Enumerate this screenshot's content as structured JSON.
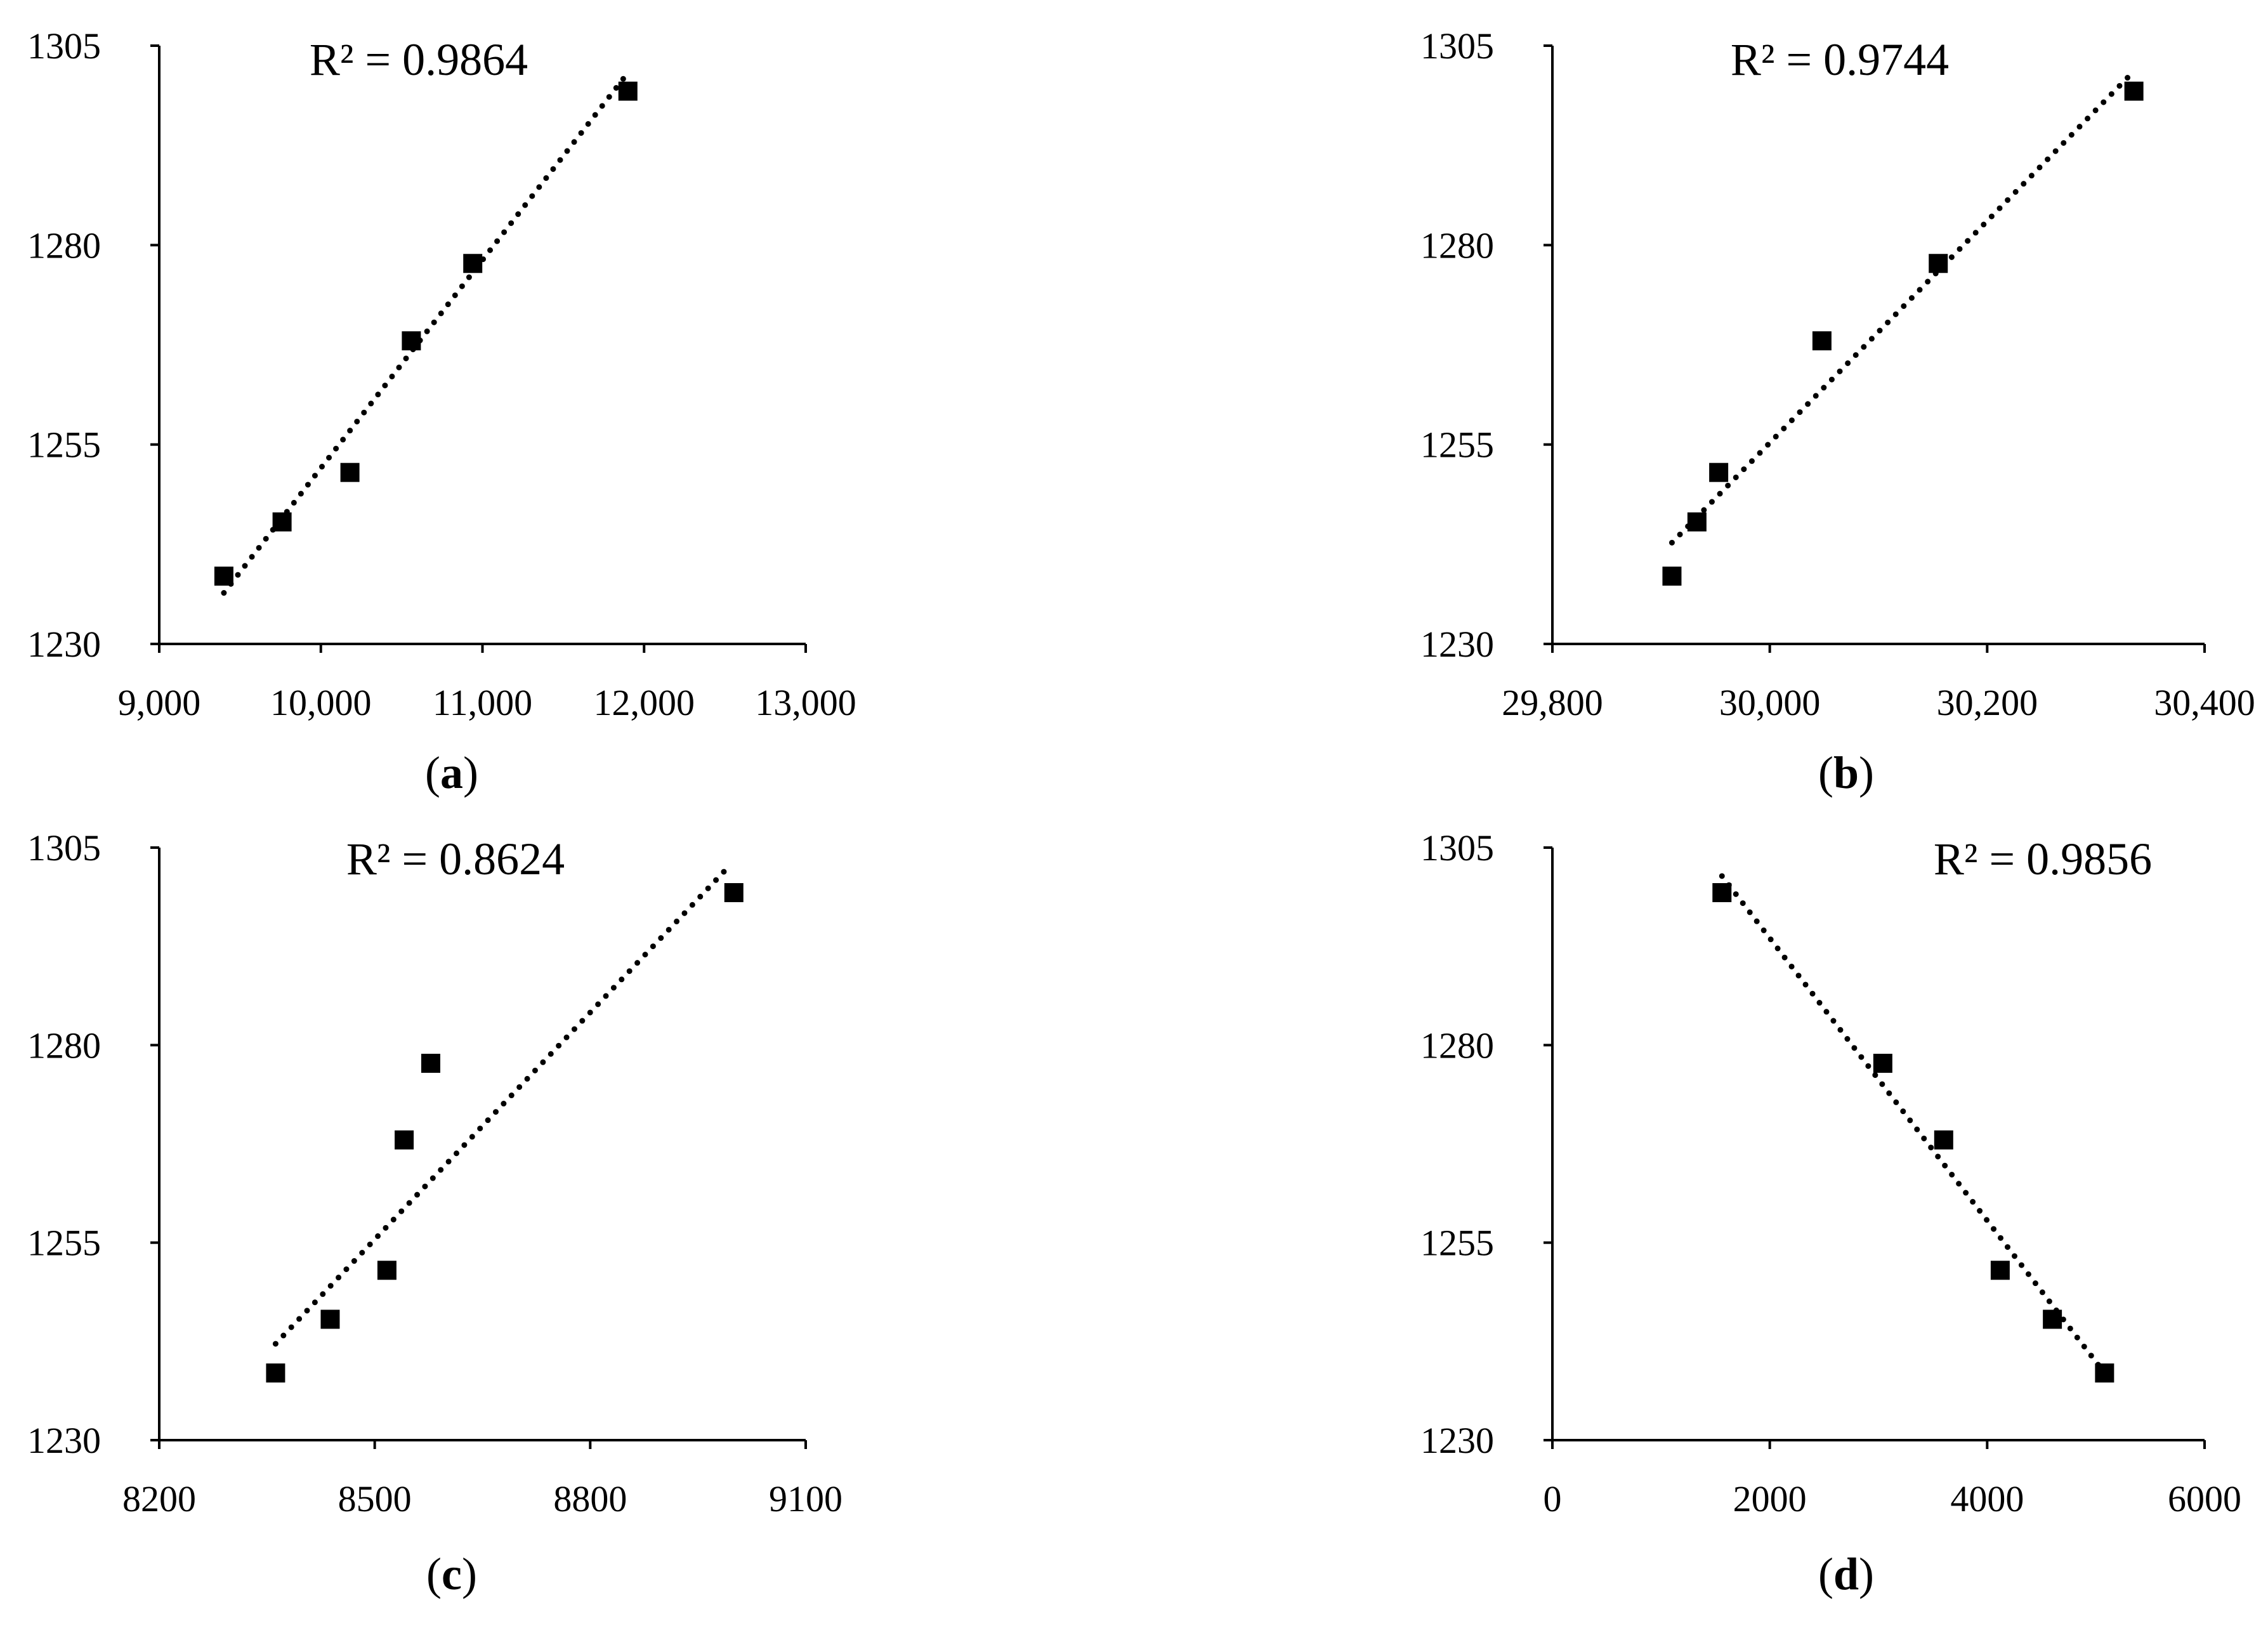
{
  "chart_data": [
    {
      "panel": "(a)",
      "type": "scatter",
      "r2": "R² = 0.9864",
      "xlim": [
        9000,
        13000
      ],
      "ylim": [
        1230,
        1305
      ],
      "x_ticks": [
        9000,
        10000,
        11000,
        12000,
        13000
      ],
      "x_tick_labels": [
        "9,000",
        "10,000",
        "11,000",
        "12,000",
        "13,000"
      ],
      "y_ticks": [
        1230,
        1255,
        1280,
        1305
      ],
      "y_tick_labels": [
        "1230",
        "1255",
        "1280",
        "1305"
      ],
      "grid": false,
      "points": [
        {
          "x": 9400,
          "y": 1238.5
        },
        {
          "x": 9760,
          "y": 1245.3
        },
        {
          "x": 10180,
          "y": 1251.5
        },
        {
          "x": 10560,
          "y": 1268
        },
        {
          "x": 10940,
          "y": 1277.7
        },
        {
          "x": 11900,
          "y": 1299.3
        }
      ],
      "trendline": {
        "x": [
          9400,
          11900
        ],
        "y": [
          1236.4,
          1301.6
        ]
      }
    },
    {
      "panel": "(b)",
      "type": "scatter",
      "r2": "R² = 0.9744",
      "xlim": [
        29800,
        30400
      ],
      "ylim": [
        1230,
        1305
      ],
      "x_ticks": [
        29800,
        30000,
        30200,
        30400
      ],
      "x_tick_labels": [
        "29,800",
        "30,000",
        "30,200",
        "30,400"
      ],
      "y_ticks": [
        1230,
        1255,
        1280,
        1305
      ],
      "y_tick_labels": [
        "1230",
        "1255",
        "1280",
        "1305"
      ],
      "grid": false,
      "points": [
        {
          "x": 29910,
          "y": 1238.5
        },
        {
          "x": 29933,
          "y": 1245.3
        },
        {
          "x": 29953,
          "y": 1251.5
        },
        {
          "x": 30048,
          "y": 1268
        },
        {
          "x": 30155,
          "y": 1277.7
        },
        {
          "x": 30335,
          "y": 1299.3
        }
      ],
      "trendline": {
        "x": [
          29910,
          30335
        ],
        "y": [
          1242.7,
          1301.8
        ]
      }
    },
    {
      "panel": "(c)",
      "type": "scatter",
      "r2": "R² = 0.8624",
      "xlim": [
        8200,
        9100
      ],
      "ylim": [
        1230,
        1305
      ],
      "x_ticks": [
        8200,
        8500,
        8800,
        9100
      ],
      "x_tick_labels": [
        "8200",
        "8500",
        "8800",
        "9100"
      ],
      "y_ticks": [
        1230,
        1255,
        1280,
        1305
      ],
      "y_tick_labels": [
        "1230",
        "1255",
        "1280",
        "1305"
      ],
      "grid": false,
      "points": [
        {
          "x": 8362,
          "y": 1238.5
        },
        {
          "x": 8438,
          "y": 1245.3
        },
        {
          "x": 8517,
          "y": 1251.5
        },
        {
          "x": 8541,
          "y": 1268
        },
        {
          "x": 8578,
          "y": 1277.7
        },
        {
          "x": 9000,
          "y": 1299.3
        }
      ],
      "trendline": {
        "x": [
          8362,
          8995
        ],
        "y": [
          1242.2,
          1302.8
        ]
      }
    },
    {
      "panel": "(d)",
      "type": "scatter",
      "r2": "R² = 0.9856",
      "xlim": [
        0,
        6000
      ],
      "ylim": [
        1230,
        1305
      ],
      "x_ticks": [
        0,
        2000,
        4000,
        6000
      ],
      "x_tick_labels": [
        "0",
        "2000",
        "4000",
        "6000"
      ],
      "y_ticks": [
        1230,
        1255,
        1280,
        1305
      ],
      "y_tick_labels": [
        "1230",
        "1255",
        "1280",
        "1305"
      ],
      "grid": false,
      "points": [
        {
          "x": 1560,
          "y": 1299.3
        },
        {
          "x": 3040,
          "y": 1277.7
        },
        {
          "x": 3600,
          "y": 1268
        },
        {
          "x": 4120,
          "y": 1251.5
        },
        {
          "x": 4600,
          "y": 1245.3
        },
        {
          "x": 5080,
          "y": 1238.5
        }
      ],
      "trendline": {
        "x": [
          1560,
          5080
        ],
        "y": [
          1301.4,
          1238.5
        ]
      }
    }
  ]
}
